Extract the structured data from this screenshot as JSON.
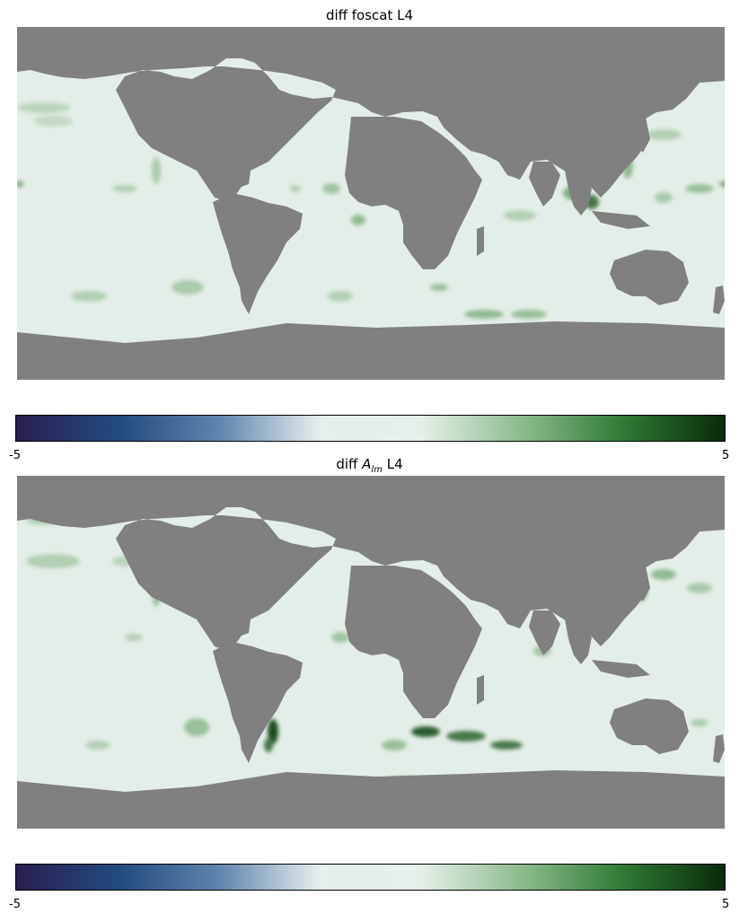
{
  "chart_data": [
    {
      "type": "heatmap",
      "title_prefix": "diff foscat L4",
      "title_sub": "",
      "title_suffix": "",
      "colormap": [
        "#2a1e4f",
        "#224a7e",
        "#5f84ad",
        "#e6eeee",
        "#e6efe9",
        "#8cbb8c",
        "#2f7a35",
        "#0a2a0a"
      ],
      "colorbar": {
        "min": -5,
        "max": 5,
        "tick_labels": [
          "-5",
          "5"
        ]
      },
      "land_color": "#808080",
      "ocean_base_color": "#e4eee8"
    },
    {
      "type": "heatmap",
      "title_prefix": "diff ",
      "title_sub": "lm",
      "title_math": "A",
      "title_suffix": " L4",
      "colormap": [
        "#2a1e4f",
        "#224a7e",
        "#5f84ad",
        "#e6eeee",
        "#e6efe9",
        "#8cbb8c",
        "#2f7a35",
        "#0a2a0a"
      ],
      "colorbar": {
        "min": -5,
        "max": 5,
        "tick_labels": [
          "-5",
          "5"
        ]
      },
      "land_color": "#808080",
      "ocean_base_color": "#e4eee8"
    }
  ]
}
